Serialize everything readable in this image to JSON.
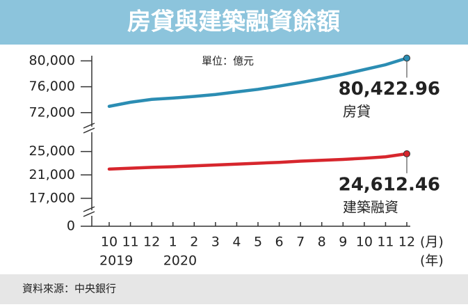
{
  "title": "房貸與建築融資餘額",
  "unit": "單位：億元",
  "source": "資料來源：中央銀行",
  "chart_data": [
    {
      "type": "line",
      "ylim": [
        69500,
        80800
      ],
      "yticks": [
        {
          "value": 72000,
          "label": "72,000"
        },
        {
          "value": 76000,
          "label": "76,000"
        },
        {
          "value": 80000,
          "label": "80,000"
        }
      ],
      "series": [
        {
          "name": "房貸",
          "color": "#2b8db3",
          "values": [
            72970,
            73600,
            74050,
            74250,
            74500,
            74800,
            75200,
            75600,
            76100,
            76650,
            77250,
            77900,
            78650,
            79400,
            80422.96
          ],
          "value_labels": [
            null,
            null,
            null,
            null,
            null,
            null,
            null,
            null,
            null,
            null,
            null,
            null,
            null,
            null,
            "80,422.96"
          ]
        }
      ]
    },
    {
      "type": "line",
      "ylim": [
        15200,
        27100
      ],
      "yticks": [
        {
          "value": 17000,
          "label": "17,000"
        },
        {
          "value": 21000,
          "label": "21,000"
        },
        {
          "value": 25000,
          "label": "25,000"
        }
      ],
      "series": [
        {
          "name": "建築融資",
          "color": "#d7262d",
          "values": [
            22000,
            22150,
            22300,
            22400,
            22550,
            22700,
            22850,
            23000,
            23150,
            23350,
            23500,
            23650,
            23850,
            24100,
            24612.46
          ],
          "value_labels": [
            null,
            null,
            null,
            null,
            null,
            null,
            null,
            null,
            null,
            null,
            null,
            null,
            null,
            null,
            "24,612.46"
          ]
        }
      ]
    },
    {
      "type": "axis",
      "ylim": [
        0,
        2400
      ],
      "yticks": [
        0
      ],
      "categories": [
        "10",
        "11",
        "12",
        "1",
        "2",
        "3",
        "4",
        "5",
        "6",
        "7",
        "8",
        "9",
        "10",
        "11",
        "12"
      ],
      "years": [
        "2019",
        null,
        null,
        "2020",
        null,
        null,
        null,
        null,
        null,
        null,
        null,
        null,
        null,
        null,
        null
      ],
      "x_unit": "(月)",
      "year_unit": "(年)"
    }
  ]
}
